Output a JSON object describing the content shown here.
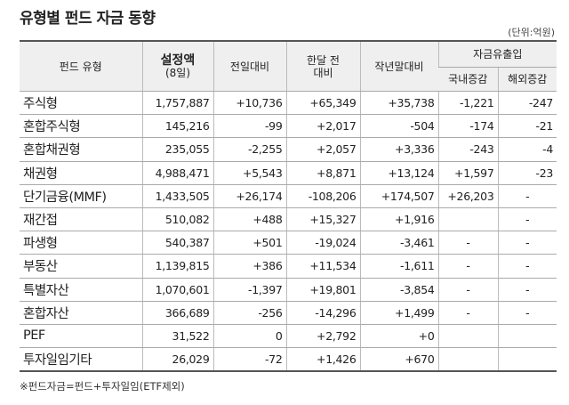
{
  "header": {
    "title": "유형별 펀드 자금 동향",
    "unit": "(단위:억원)"
  },
  "table": {
    "header": {
      "fund_type": "펀드 유형",
      "amount": [
        "설정액",
        "(8일)"
      ],
      "prev_day": "전일대비",
      "month_ago": [
        "한달 전",
        "대비"
      ],
      "year_end": "작년말대비",
      "flow": "자금유출입",
      "domestic": "국내증감",
      "overseas": "해외증감"
    },
    "rows": [
      [
        "주식형",
        "1,757,887",
        "+10,736",
        "+65,349",
        "+35,738",
        "-1,221",
        "-247"
      ],
      [
        "혼합주식형",
        "145,216",
        "-99",
        "+2,017",
        "-504",
        "-174",
        "-21"
      ],
      [
        "혼합채권형",
        "235,055",
        "-2,255",
        "+2,057",
        "+3,336",
        "-243",
        "-4"
      ],
      [
        "채권형",
        "4,988,471",
        "+5,543",
        "+8,871",
        "+13,124",
        "+1,597",
        "-23"
      ],
      [
        "단기금융(MMF)",
        "1,433,505",
        "+26,174",
        "-108,206",
        "+174,507",
        "+26,203",
        "-"
      ],
      [
        "재간접",
        "510,082",
        "+488",
        "+15,327",
        "+1,916",
        null,
        "-"
      ],
      [
        "파생형",
        "540,387",
        "+501",
        "-19,024",
        "-3,461",
        "-",
        "-"
      ],
      [
        "부동산",
        "1,139,815",
        "+386",
        "+11,534",
        "-1,611",
        "-",
        "-"
      ],
      [
        "특별자산",
        "1,070,601",
        "-1,397",
        "+19,801",
        "-3,854",
        "-",
        "-"
      ],
      [
        "혼합자산",
        "366,689",
        "-256",
        "-14,296",
        "+1,499",
        "-",
        "-"
      ],
      [
        "PEF",
        "31,522",
        "0",
        "+2,792",
        "+0",
        null,
        null
      ],
      [
        "투자일임기타",
        "26,029",
        "-72",
        "+1,426",
        "+670",
        null,
        null
      ]
    ]
  },
  "footnote": "※펀드자금=펀드+투자일임(ETF제외)"
}
